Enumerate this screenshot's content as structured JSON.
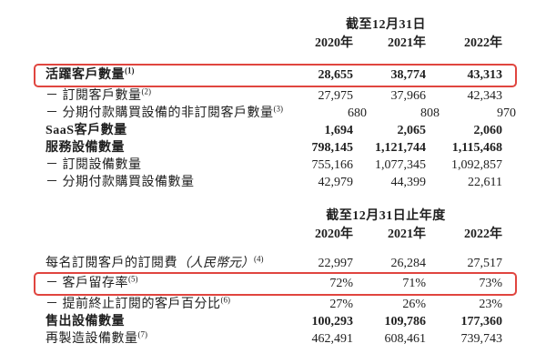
{
  "page": {
    "background_color": "#ffffff",
    "text_color": "#1f1f1f",
    "highlight_box_color": "#e0453f"
  },
  "table1": {
    "period_header": "截至12月31日",
    "years": [
      "2020年",
      "2021年",
      "2022年"
    ],
    "rows": [
      {
        "label": "活躍客戶數量",
        "sup": "(1)",
        "values": [
          "28,655",
          "38,774",
          "43,313"
        ]
      },
      {
        "label": "－ 訂閱客戶數量",
        "sup": "(2)",
        "values": [
          "27,975",
          "37,966",
          "42,343"
        ]
      },
      {
        "label": "－ 分期付款購買設備的非訂閱客戶數量",
        "sup": "(3)",
        "values": [
          "680",
          "808",
          "970"
        ]
      },
      {
        "label": "SaaS客戶數量",
        "values": [
          "1,694",
          "2,065",
          "2,060"
        ]
      },
      {
        "label": "服務設備數量",
        "values": [
          "798,145",
          "1,121,744",
          "1,115,468"
        ]
      },
      {
        "label": "－ 訂閱設備數量",
        "values": [
          "755,166",
          "1,077,345",
          "1,092,857"
        ]
      },
      {
        "label": "－ 分期付款購買設備數量",
        "values": [
          "42,979",
          "44,399",
          "22,611"
        ]
      }
    ]
  },
  "table2": {
    "period_header": "截至12月31日止年度",
    "years": [
      "2020年",
      "2021年",
      "2022年"
    ],
    "rows": [
      {
        "label": "每名訂閱客戶的訂閱費",
        "label_italic": "（人民幣元）",
        "sup": "(4)",
        "values": [
          "22,997",
          "26,284",
          "27,517"
        ]
      },
      {
        "label": "－ 客戶留存率",
        "sup": "(5)",
        "values": [
          "72%",
          "71%",
          "73%"
        ]
      },
      {
        "label": "－ 提前終止訂閱的客戶百分比",
        "sup": "(6)",
        "values": [
          "27%",
          "26%",
          "23%"
        ]
      },
      {
        "label": "售出設備數量",
        "values": [
          "100,293",
          "109,786",
          "177,360"
        ]
      },
      {
        "label": "再製造設備數量",
        "sup": "(7)",
        "values": [
          "462,491",
          "608,461",
          "739,743"
        ]
      }
    ]
  }
}
